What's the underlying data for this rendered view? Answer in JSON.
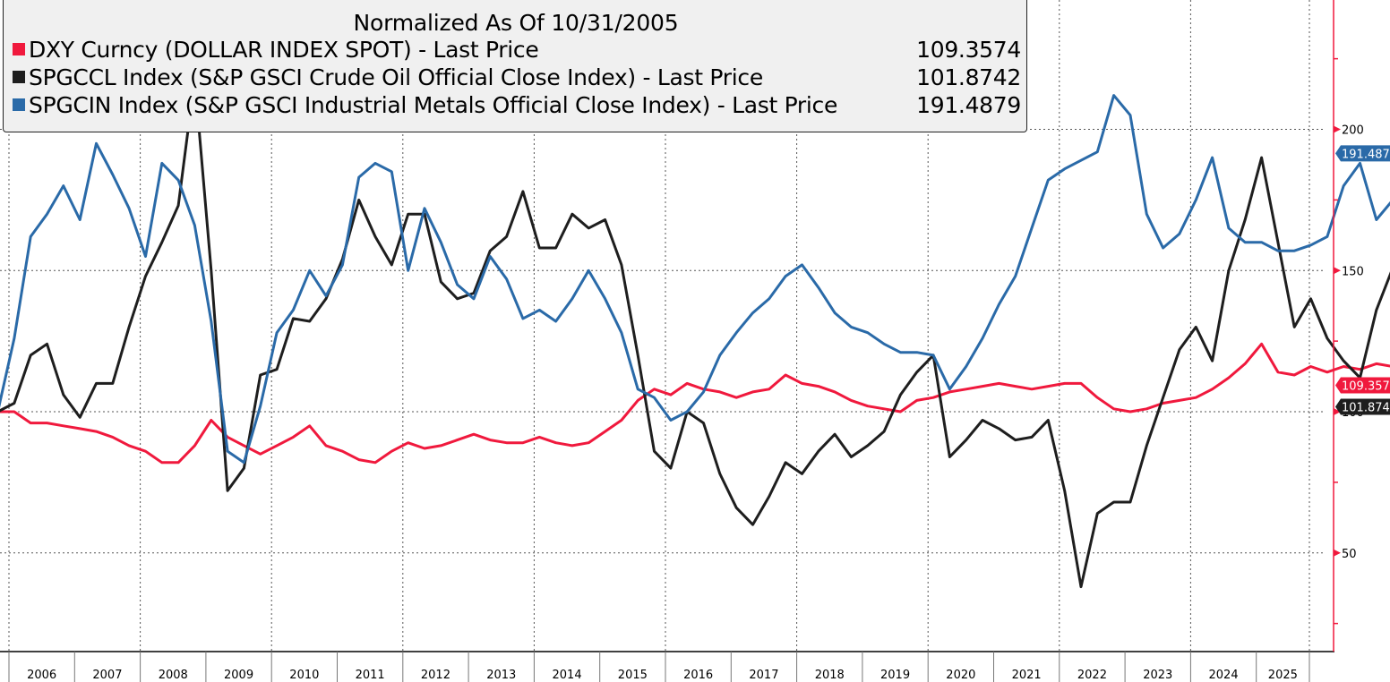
{
  "legend": {
    "title": "Normalized As Of 10/31/2005",
    "rows": [
      {
        "label": "DXY Curncy (DOLLAR INDEX SPOT) - Last Price",
        "value": "109.3574",
        "color": "#f0193d"
      },
      {
        "label": "SPGCCL Index (S&P GSCI Crude Oil Official Close Index) - Last Price",
        "value": "101.8742",
        "color": "#1e1e1e"
      },
      {
        "label": "SPGCIN Index (S&P GSCI Industrial Metals Official Close Index) - Last Price",
        "value": "191.4879",
        "color": "#2a6aa8"
      }
    ]
  },
  "chart_data": {
    "type": "line",
    "title": "Normalized As Of 10/31/2005",
    "xlabel": "",
    "ylabel": "",
    "x_start": 2005.83,
    "x_step_years": 0.25,
    "xlim": [
      2005.83,
      2025.95
    ],
    "ylim": [
      15,
      246
    ],
    "yticks": [
      50,
      100,
      150,
      200
    ],
    "yticks_minor": [
      25,
      75,
      125,
      175,
      225
    ],
    "xtick_labels": [
      "2006",
      "2007",
      "2008",
      "2009",
      "2010",
      "2011",
      "2012",
      "2013",
      "2014",
      "2015",
      "2016",
      "2017",
      "2018",
      "2019",
      "2020",
      "2021",
      "2022",
      "2023",
      "2024",
      "2025"
    ],
    "grid": true,
    "legend_position": "top-left",
    "y_axis_side": "right",
    "series": [
      {
        "name": "DXY Curncy (DOLLAR INDEX SPOT) - Last Price",
        "color": "#f0193d",
        "last_value": 109.3574,
        "values": [
          100,
          100,
          96,
          96,
          95,
          94,
          93,
          91,
          88,
          86,
          82,
          82,
          88,
          97,
          91,
          88,
          85,
          88,
          91,
          95,
          88,
          86,
          83,
          82,
          86,
          89,
          87,
          88,
          90,
          92,
          90,
          89,
          89,
          91,
          89,
          88,
          89,
          93,
          97,
          104,
          108,
          106,
          110,
          108,
          107,
          105,
          107,
          108,
          113,
          110,
          109,
          107,
          104,
          102,
          101,
          100,
          104,
          105,
          107,
          108,
          109,
          110,
          109,
          108,
          109,
          110,
          110,
          105,
          101,
          100,
          101,
          103,
          104,
          105,
          108,
          112,
          117,
          124,
          114,
          113,
          116,
          114,
          116,
          115,
          117,
          116,
          112,
          113,
          118,
          112,
          111,
          112,
          110,
          109
        ]
      },
      {
        "name": "SPGCCL Index (S&P GSCI Crude Oil Official Close Index) - Last Price",
        "color": "#1e1e1e",
        "last_value": 101.8742,
        "values": [
          100,
          103,
          120,
          124,
          106,
          98,
          110,
          110,
          130,
          148,
          160,
          173,
          218,
          150,
          72,
          80,
          113,
          115,
          133,
          132,
          140,
          154,
          175,
          162,
          152,
          170,
          170,
          146,
          140,
          142,
          157,
          162,
          178,
          158,
          158,
          170,
          165,
          168,
          152,
          120,
          86,
          80,
          100,
          96,
          78,
          66,
          60,
          70,
          82,
          78,
          86,
          92,
          84,
          88,
          93,
          106,
          114,
          120,
          84,
          90,
          97,
          94,
          90,
          91,
          97,
          72,
          38,
          64,
          68,
          68,
          88,
          105,
          122,
          130,
          118,
          150,
          168,
          190,
          160,
          130,
          140,
          126,
          118,
          112,
          136,
          151,
          130,
          120,
          138,
          120,
          115,
          106,
          97,
          102
        ]
      },
      {
        "name": "SPGCIN Index (S&P GSCI Industrial Metals Official Close Index) - Last Price",
        "color": "#2a6aa8",
        "last_value": 191.4879,
        "values": [
          100,
          126,
          162,
          170,
          180,
          168,
          195,
          184,
          172,
          155,
          188,
          182,
          166,
          132,
          86,
          82,
          102,
          128,
          136,
          150,
          141,
          152,
          183,
          188,
          185,
          150,
          172,
          160,
          145,
          140,
          155,
          147,
          133,
          136,
          132,
          140,
          150,
          140,
          128,
          108,
          105,
          97,
          100,
          107,
          120,
          128,
          135,
          140,
          148,
          152,
          144,
          135,
          130,
          128,
          124,
          121,
          121,
          120,
          108,
          116,
          126,
          138,
          148,
          165,
          182,
          186,
          189,
          192,
          212,
          205,
          170,
          158,
          163,
          175,
          190,
          165,
          160,
          160,
          157,
          157,
          159,
          162,
          180,
          188,
          168,
          175,
          180,
          172,
          172,
          176,
          178,
          182,
          186,
          191.49
        ]
      }
    ]
  }
}
